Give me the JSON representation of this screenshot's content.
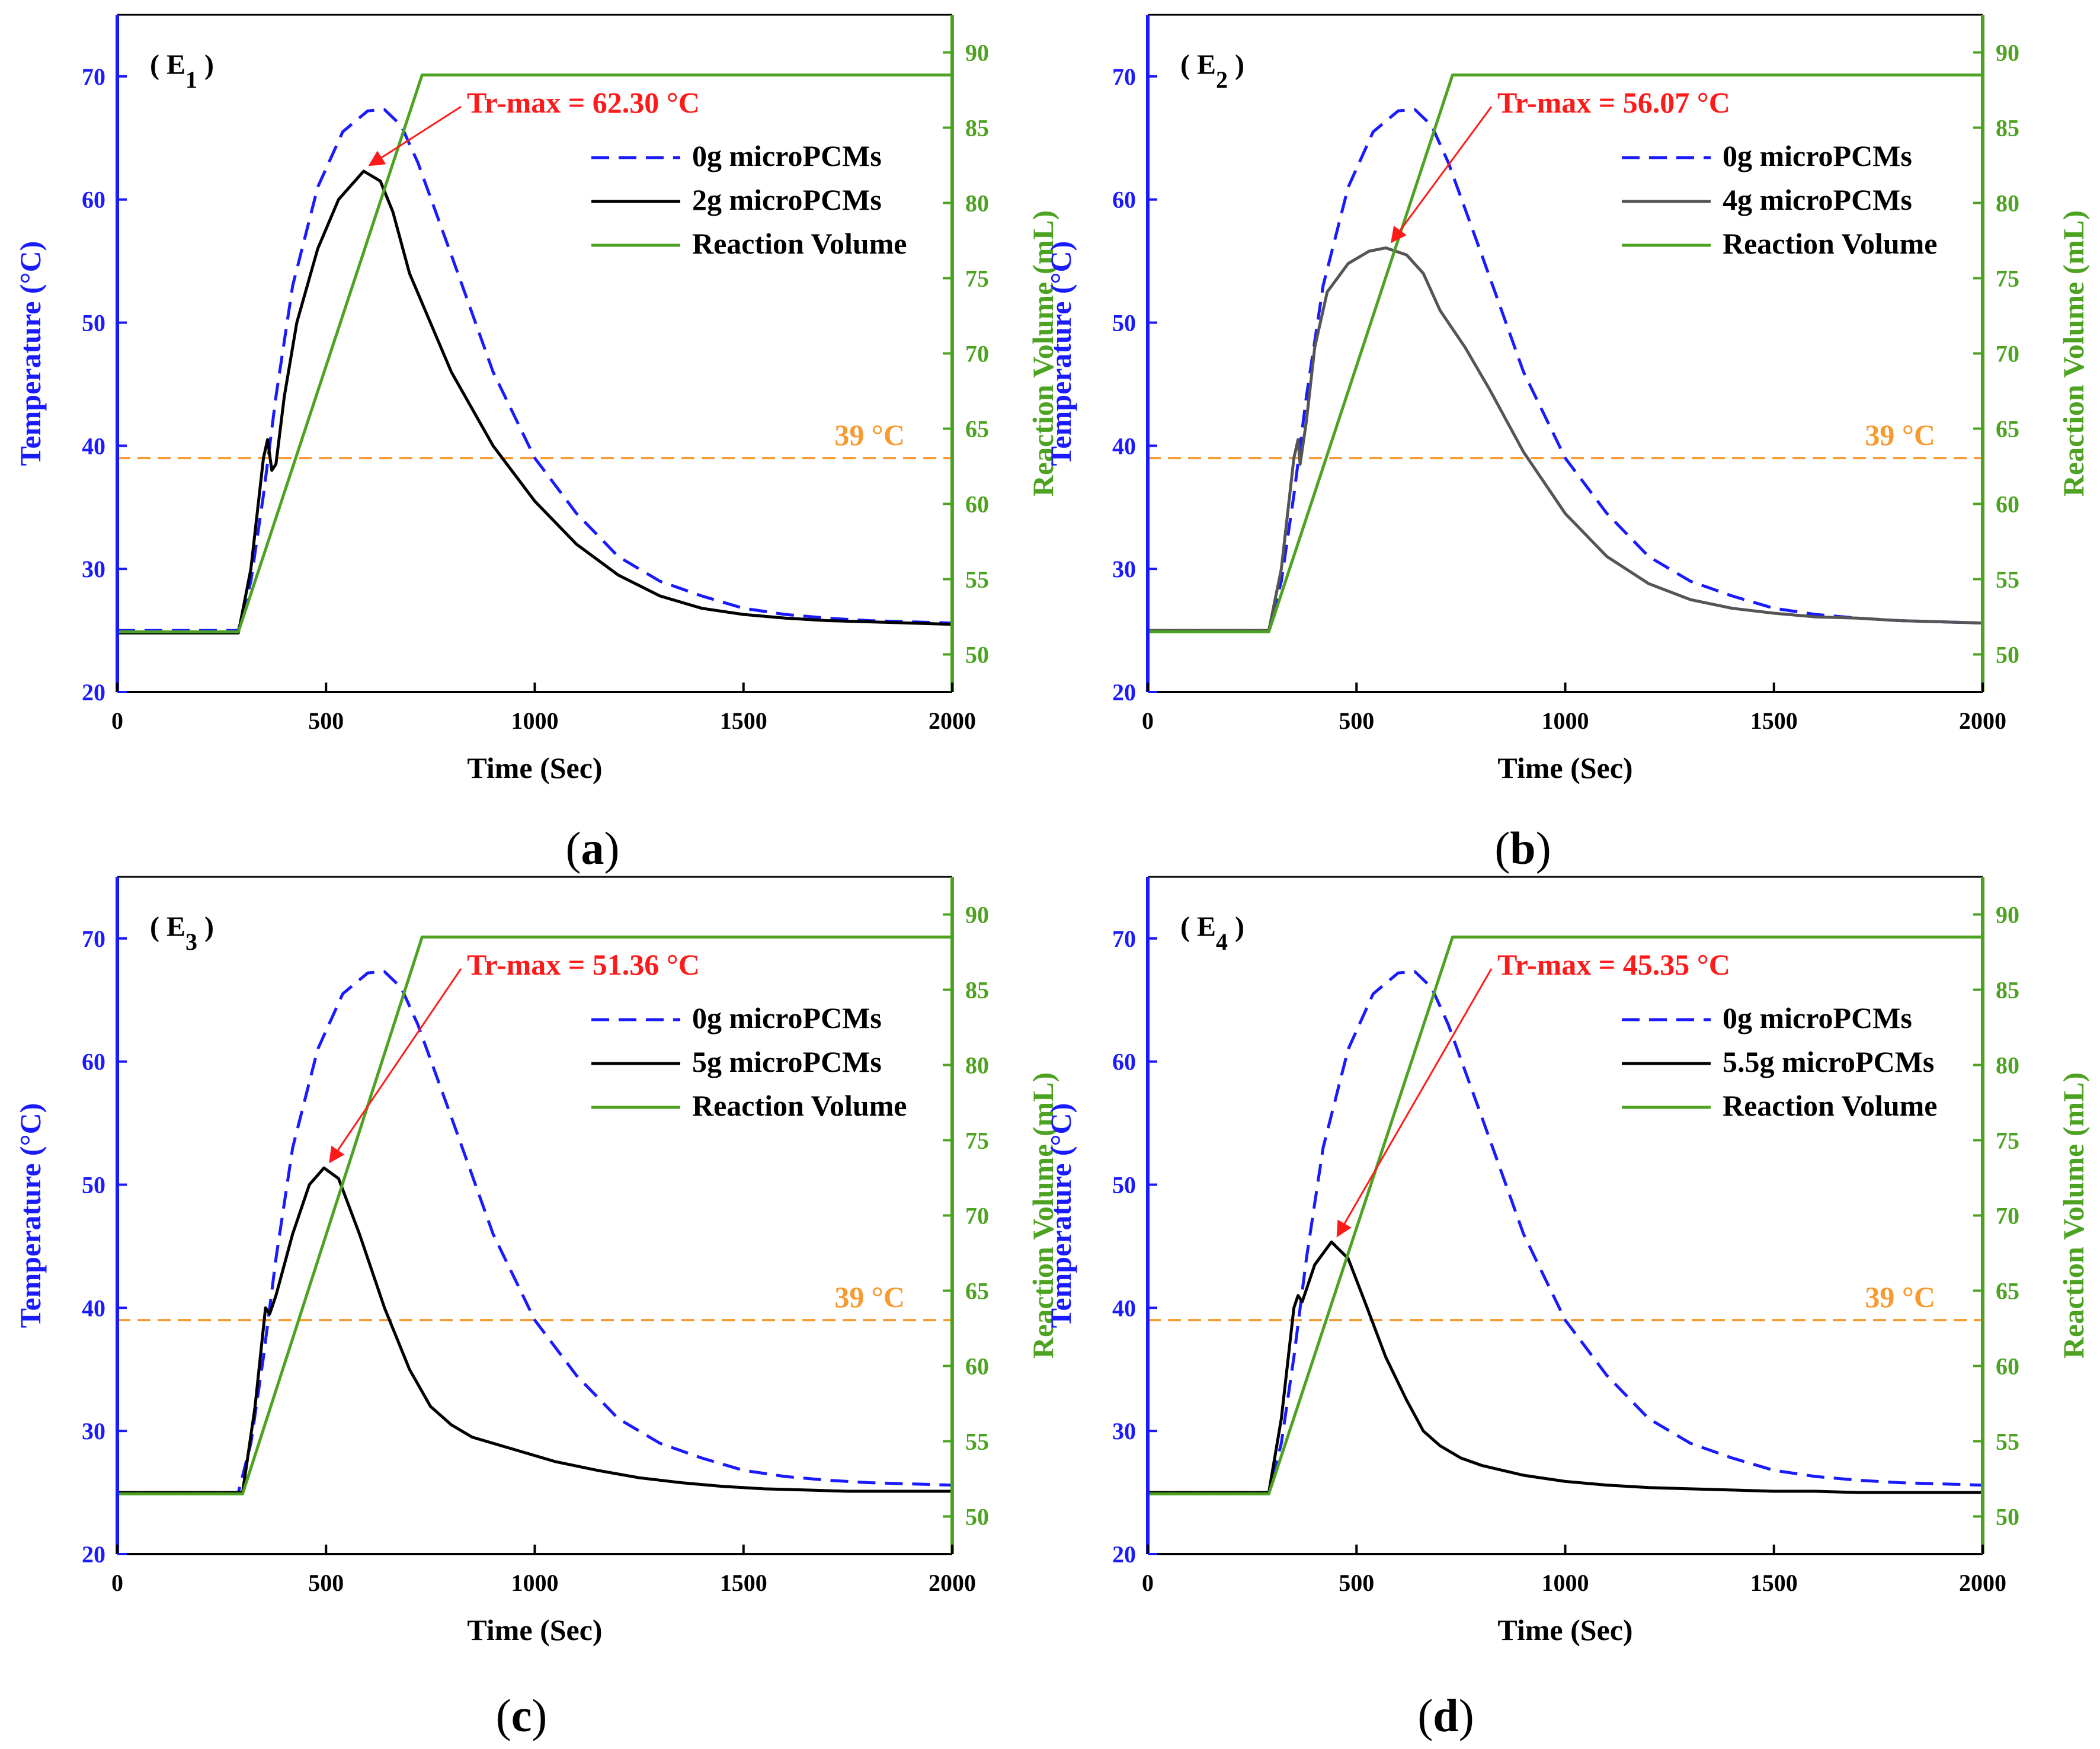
{
  "chart_data": [
    {
      "type": "line",
      "panel_tag": "E",
      "panel_sub": "1",
      "caption_open": "(",
      "caption_letter": "a",
      "caption_close": ")",
      "xlabel": "Time (Sec)",
      "ylabel": "Temperature (°C)",
      "y2label": "Reaction Volume (mL)",
      "xlim": [
        0,
        2000
      ],
      "ylim": [
        20,
        75
      ],
      "y2lim": [
        47.5,
        92.5
      ],
      "xticks": [
        "0",
        "500",
        "1000",
        "1500",
        "2000"
      ],
      "yticks": [
        "20",
        "30",
        "40",
        "50",
        "60",
        "70"
      ],
      "y2ticks": [
        "50",
        "55",
        "60",
        "65",
        "70",
        "75",
        "80",
        "85",
        "90"
      ],
      "annotation": {
        "text": "Tr-max = 62.30 °C",
        "point": [
          590,
          62.3
        ]
      },
      "reference_line": {
        "label": "39 °C",
        "y": 39,
        "color": "#f79a30"
      },
      "legend": [
        "0g microPCMs",
        "2g microPCMs",
        "Reaction Volume"
      ],
      "series": [
        {
          "name": "0g microPCMs",
          "axis": "left",
          "color": "#1a1aff",
          "dash": true,
          "x": [
            0,
            290,
            320,
            350,
            380,
            420,
            480,
            540,
            600,
            640,
            680,
            720,
            800,
            900,
            1000,
            1100,
            1200,
            1300,
            1400,
            1500,
            1600,
            1700,
            1800,
            1900,
            2000
          ],
          "y": [
            25,
            25,
            29,
            36,
            44,
            53,
            61,
            65.5,
            67.2,
            67.3,
            66,
            63,
            55.5,
            46,
            39,
            34.5,
            31,
            29,
            27.8,
            26.8,
            26.3,
            26,
            25.8,
            25.7,
            25.6
          ]
        },
        {
          "name": "2g microPCMs",
          "axis": "left",
          "color": "#000000",
          "dash": false,
          "x": [
            0,
            290,
            320,
            350,
            360,
            370,
            380,
            400,
            430,
            480,
            530,
            590,
            630,
            660,
            700,
            800,
            900,
            1000,
            1100,
            1200,
            1300,
            1400,
            1500,
            1600,
            1700,
            1800,
            1900,
            2000
          ],
          "y": [
            24.8,
            24.8,
            30,
            39,
            40.5,
            38,
            38.5,
            44,
            50,
            56,
            60,
            62.3,
            61.5,
            59,
            54,
            46,
            40,
            35.5,
            32,
            29.5,
            27.8,
            26.8,
            26.3,
            26,
            25.8,
            25.7,
            25.6,
            25.5
          ]
        },
        {
          "name": "Reaction Volume",
          "axis": "right",
          "color": "#4da321",
          "dash": false,
          "x": [
            0,
            290,
            730,
            2000
          ],
          "y": [
            51.5,
            51.5,
            88.5,
            88.5
          ]
        }
      ]
    },
    {
      "type": "line",
      "panel_tag": "E",
      "panel_sub": "2",
      "caption_open": "(",
      "caption_letter": "b",
      "caption_close": ")",
      "xlabel": "Time (Sec)",
      "ylabel": "Temperature (°C)",
      "y2label": "Reaction Volume (mL)",
      "xlim": [
        0,
        2000
      ],
      "ylim": [
        20,
        75
      ],
      "y2lim": [
        47.5,
        92.5
      ],
      "xticks": [
        "0",
        "500",
        "1000",
        "1500",
        "2000"
      ],
      "yticks": [
        "20",
        "30",
        "40",
        "50",
        "60",
        "70"
      ],
      "y2ticks": [
        "50",
        "55",
        "60",
        "65",
        "70",
        "75",
        "80",
        "85",
        "90"
      ],
      "annotation": {
        "text": "Tr-max = 56.07 °C",
        "point": [
          570,
          56.07
        ]
      },
      "reference_line": {
        "label": "39 °C",
        "y": 39,
        "color": "#f79a30"
      },
      "legend": [
        "0g microPCMs",
        "4g microPCMs",
        "Reaction Volume"
      ],
      "series": [
        {
          "name": "0g microPCMs",
          "axis": "left",
          "color": "#1a1aff",
          "dash": true,
          "x": [
            0,
            290,
            320,
            350,
            380,
            420,
            480,
            540,
            600,
            640,
            680,
            720,
            800,
            900,
            1000,
            1100,
            1200,
            1300,
            1400,
            1500,
            1600,
            1700,
            1800,
            1900,
            2000
          ],
          "y": [
            25,
            25,
            29,
            36,
            44,
            53,
            61,
            65.5,
            67.2,
            67.3,
            66,
            63,
            55.5,
            46,
            39,
            34.5,
            31,
            29,
            27.8,
            26.8,
            26.3,
            26,
            25.8,
            25.7,
            25.6
          ]
        },
        {
          "name": "4g microPCMs",
          "axis": "left",
          "color": "#555555",
          "dash": false,
          "x": [
            0,
            290,
            320,
            350,
            360,
            365,
            380,
            400,
            430,
            480,
            530,
            570,
            620,
            660,
            700,
            760,
            820,
            900,
            1000,
            1100,
            1200,
            1300,
            1400,
            1500,
            1600,
            1700,
            1800,
            1900,
            2000
          ],
          "y": [
            25,
            25,
            30,
            39,
            40.5,
            38.5,
            42,
            48,
            52.5,
            54.8,
            55.8,
            56.07,
            55.5,
            54,
            51,
            48,
            44.5,
            39.5,
            34.5,
            31,
            28.8,
            27.5,
            26.8,
            26.4,
            26.1,
            26,
            25.8,
            25.7,
            25.6
          ]
        },
        {
          "name": "Reaction Volume",
          "axis": "right",
          "color": "#4da321",
          "dash": false,
          "x": [
            0,
            290,
            730,
            2000
          ],
          "y": [
            51.5,
            51.5,
            88.5,
            88.5
          ]
        }
      ]
    },
    {
      "type": "line",
      "panel_tag": "E",
      "panel_sub": "3",
      "caption_open": "(",
      "caption_letter": "c",
      "caption_close": ")",
      "xlabel": "Time (Sec)",
      "ylabel": "Temperature (°C)",
      "y2label": "Reaction Volume (mL)",
      "xlim": [
        0,
        2000
      ],
      "ylim": [
        20,
        75
      ],
      "y2lim": [
        47.5,
        92.5
      ],
      "xticks": [
        "0",
        "500",
        "1000",
        "1500",
        "2000"
      ],
      "yticks": [
        "20",
        "30",
        "40",
        "50",
        "60",
        "70"
      ],
      "y2ticks": [
        "50",
        "55",
        "60",
        "65",
        "70",
        "75",
        "80",
        "85",
        "90"
      ],
      "annotation": {
        "text": "Tr-max = 51.36 °C",
        "point": [
          495,
          51.36
        ]
      },
      "reference_line": {
        "label": "39 °C",
        "y": 39,
        "color": "#f79a30"
      },
      "legend": [
        "0g microPCMs",
        "5g microPCMs",
        "Reaction Volume"
      ],
      "series": [
        {
          "name": "0g microPCMs",
          "axis": "left",
          "color": "#1a1aff",
          "dash": true,
          "x": [
            0,
            290,
            320,
            350,
            380,
            420,
            480,
            540,
            600,
            640,
            680,
            720,
            800,
            900,
            1000,
            1100,
            1200,
            1300,
            1400,
            1500,
            1600,
            1700,
            1800,
            1900,
            2000
          ],
          "y": [
            25,
            25,
            29,
            36,
            44,
            53,
            61,
            65.5,
            67.2,
            67.3,
            66,
            63,
            55.5,
            46,
            39,
            34.5,
            31,
            29,
            27.8,
            26.8,
            26.3,
            26,
            25.8,
            25.7,
            25.6
          ]
        },
        {
          "name": "5g microPCMs",
          "axis": "left",
          "color": "#000000",
          "dash": false,
          "x": [
            0,
            300,
            330,
            355,
            365,
            380,
            420,
            460,
            495,
            530,
            580,
            640,
            700,
            750,
            800,
            850,
            950,
            1050,
            1150,
            1250,
            1350,
            1450,
            1550,
            1650,
            1750,
            1850,
            2000
          ],
          "y": [
            25,
            25,
            32,
            40,
            39.5,
            41,
            46,
            50,
            51.36,
            50.5,
            46,
            40,
            35,
            32,
            30.5,
            29.5,
            28.5,
            27.5,
            26.8,
            26.2,
            25.8,
            25.5,
            25.3,
            25.2,
            25.1,
            25.1,
            25.1
          ]
        },
        {
          "name": "Reaction Volume",
          "axis": "right",
          "color": "#4da321",
          "dash": false,
          "x": [
            0,
            300,
            730,
            2000
          ],
          "y": [
            51.5,
            51.5,
            88.5,
            88.5
          ]
        }
      ]
    },
    {
      "type": "line",
      "panel_tag": "E",
      "panel_sub": "4",
      "caption_open": "(",
      "caption_letter": "d",
      "caption_close": ")",
      "xlabel": "Time (Sec)",
      "ylabel": "Temperature (°C)",
      "y2label": "Reaction Volume (mL)",
      "xlim": [
        0,
        2000
      ],
      "ylim": [
        20,
        75
      ],
      "y2lim": [
        47.5,
        92.5
      ],
      "xticks": [
        "0",
        "500",
        "1000",
        "1500",
        "2000"
      ],
      "yticks": [
        "20",
        "30",
        "40",
        "50",
        "60",
        "70"
      ],
      "y2ticks": [
        "50",
        "55",
        "60",
        "65",
        "70",
        "75",
        "80",
        "85",
        "90"
      ],
      "annotation": {
        "text": "Tr-max = 45.35 °C",
        "point": [
          440,
          45.35
        ]
      },
      "reference_line": {
        "label": "39 °C",
        "y": 39,
        "color": "#f79a30"
      },
      "legend": [
        "0g microPCMs",
        "5.5g microPCMs",
        "Reaction Volume"
      ],
      "series": [
        {
          "name": "0g microPCMs",
          "axis": "left",
          "color": "#1a1aff",
          "dash": true,
          "x": [
            0,
            290,
            320,
            350,
            380,
            420,
            480,
            540,
            600,
            640,
            680,
            720,
            800,
            900,
            1000,
            1100,
            1200,
            1300,
            1400,
            1500,
            1600,
            1700,
            1800,
            1900,
            2000
          ],
          "y": [
            25,
            25,
            29,
            36,
            44,
            53,
            61,
            65.5,
            67.2,
            67.3,
            66,
            63,
            55.5,
            46,
            39,
            34.5,
            31,
            29,
            27.8,
            26.8,
            26.3,
            26,
            25.8,
            25.7,
            25.6
          ]
        },
        {
          "name": "5.5g microPCMs",
          "axis": "left",
          "color": "#000000",
          "dash": false,
          "x": [
            0,
            290,
            320,
            350,
            360,
            370,
            400,
            440,
            480,
            520,
            570,
            620,
            660,
            700,
            750,
            800,
            900,
            1000,
            1100,
            1200,
            1300,
            1400,
            1500,
            1600,
            1700,
            1800,
            1900,
            2000
          ],
          "y": [
            25,
            25,
            31,
            40,
            41,
            40.5,
            43.5,
            45.35,
            44,
            40.5,
            36,
            32.5,
            30,
            28.8,
            27.8,
            27.2,
            26.4,
            25.9,
            25.6,
            25.4,
            25.3,
            25.2,
            25.1,
            25.1,
            25.0,
            25.0,
            25.0,
            25.0
          ]
        },
        {
          "name": "Reaction Volume",
          "axis": "right",
          "color": "#4da321",
          "dash": false,
          "x": [
            0,
            290,
            730,
            2000
          ],
          "y": [
            51.5,
            51.5,
            88.5,
            88.5
          ]
        }
      ]
    }
  ]
}
